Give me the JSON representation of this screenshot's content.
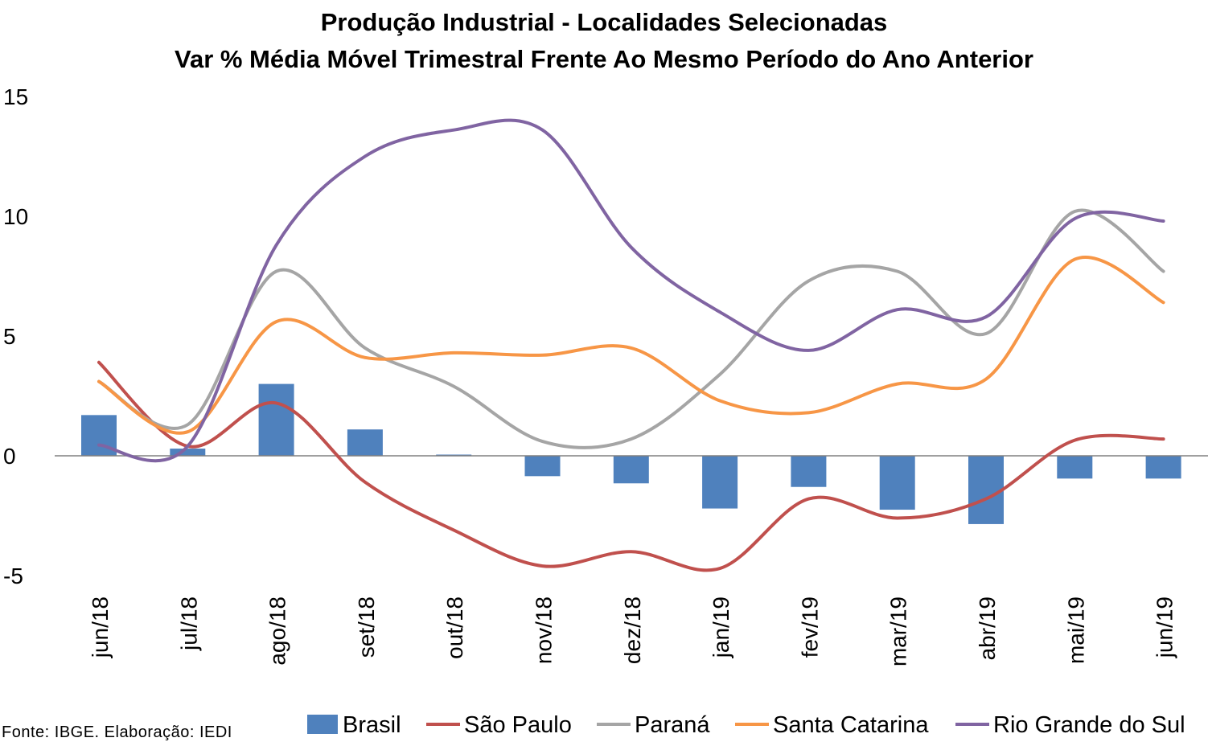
{
  "source_note": "Fonte: IBGE. Elaboração: IEDI",
  "chart_data": {
    "type": "bar+line",
    "title": "Produção Industrial - Localidades Selecionadas",
    "subtitle": "Var % Média Móvel Trimestral Frente Ao Mesmo Período do Ano Anterior",
    "xlabel": "",
    "ylabel": "",
    "ylim": [
      -5,
      15
    ],
    "yticks": [
      "15",
      "10",
      "5",
      "0",
      "-5"
    ],
    "grid": false,
    "legend_position": "bottom",
    "categories": [
      "jun/18",
      "jul/18",
      "ago/18",
      "set/18",
      "out/18",
      "nov/18",
      "dez/18",
      "jan/19",
      "fev/19",
      "mar/19",
      "abr/19",
      "mai/19",
      "jun/19"
    ],
    "series": [
      {
        "name": "Brasil",
        "kind": "bar",
        "color": "#4f81bd",
        "values": [
          1.7,
          0.3,
          3.0,
          1.1,
          0.05,
          -0.85,
          -1.15,
          -2.2,
          -1.3,
          -2.25,
          -2.85,
          -0.95,
          -0.95
        ]
      },
      {
        "name": "São Paulo",
        "kind": "line",
        "color": "#c0504d",
        "values": [
          3.9,
          0.4,
          2.2,
          -1.1,
          -3.1,
          -4.6,
          -4.0,
          -4.7,
          -1.8,
          -2.6,
          -1.8,
          0.65,
          0.7
        ]
      },
      {
        "name": "Paraná",
        "kind": "line",
        "color": "#a5a5a5",
        "values": [
          3.1,
          1.3,
          7.7,
          4.5,
          2.9,
          0.6,
          0.7,
          3.4,
          7.3,
          7.7,
          5.1,
          10.2,
          7.7
        ]
      },
      {
        "name": "Santa Catarina",
        "kind": "line",
        "color": "#f79646",
        "values": [
          3.1,
          1.0,
          5.6,
          4.1,
          4.3,
          4.2,
          4.5,
          2.3,
          1.8,
          3.0,
          3.2,
          8.2,
          6.4
        ]
      },
      {
        "name": "Rio Grande do Sul",
        "kind": "line",
        "color": "#8064a2",
        "values": [
          0.45,
          0.4,
          8.8,
          12.5,
          13.6,
          13.6,
          8.7,
          6.0,
          4.4,
          6.1,
          5.8,
          9.9,
          9.8
        ]
      }
    ]
  }
}
